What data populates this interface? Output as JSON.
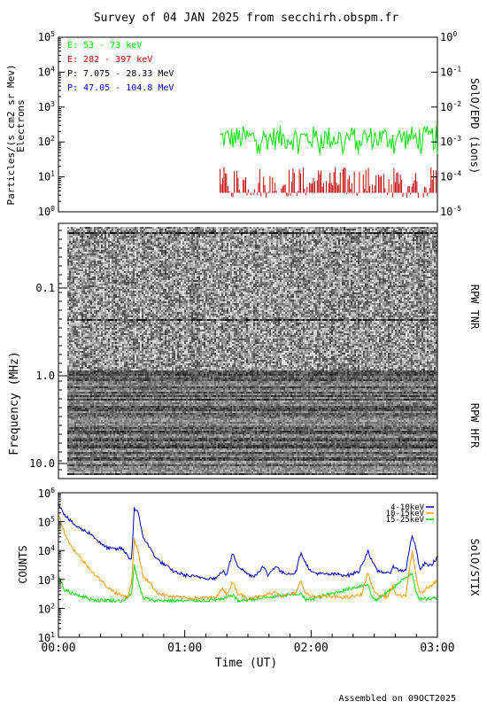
{
  "title": "Survey of 04 JAN 2025 from secchirh.obspm.fr",
  "footer": "Assembled on 09OCT2025",
  "colors": {
    "green": "#00e000",
    "red": "#c00000",
    "black": "#000000",
    "blue": "#0000c8",
    "orange": "#ff9900",
    "stix_green": "#00d800"
  },
  "chart_data": [
    {
      "type": "line",
      "name": "SolO/EPD",
      "ylabel_left": "Particles/(s cm2 sr Mev)",
      "ylabel_left2": "Electrons",
      "ylabel_right": "SolO/EPD (ions)",
      "yscale": "log",
      "ylim": [
        1,
        100000
      ],
      "ylim_right": [
        1e-05,
        1
      ],
      "xlim": [
        "00:00",
        "03:00"
      ],
      "left_ticks": [
        {
          "base": "10",
          "exp": "5"
        },
        {
          "base": "10",
          "exp": "4"
        },
        {
          "base": "10",
          "exp": "3"
        },
        {
          "base": "10",
          "exp": "2"
        },
        {
          "base": "10",
          "exp": "1"
        },
        {
          "base": "10",
          "exp": "0"
        }
      ],
      "right_ticks": [
        {
          "base": "10",
          "exp": "0"
        },
        {
          "base": "10",
          "exp": "-1"
        },
        {
          "base": "10",
          "exp": "-2"
        },
        {
          "base": "10",
          "exp": "-3"
        },
        {
          "base": "10",
          "exp": "-4"
        },
        {
          "base": "10",
          "exp": "-5"
        }
      ],
      "legend": [
        "E: 53 - 73 keV",
        "E: 282 - 397 keV",
        "P: 7.075 - 28.33 MeV",
        "P: 47.05 - 104.8 MeV"
      ],
      "series": [
        {
          "name": "E: 53 - 73 keV",
          "color": "#00e000",
          "x_start_hours": 1.28,
          "x_end_hours": 3.0,
          "level": 130,
          "spread": 0.35
        },
        {
          "name": "E: 282 - 397 keV",
          "color": "#c00000",
          "x_start_hours": 1.28,
          "x_end_hours": 3.0,
          "level": 7,
          "spread": 0.45
        }
      ]
    },
    {
      "type": "heatmap",
      "name": "RPW spectrogram",
      "ylabel": "Frequency (MHz)",
      "yscale": "log",
      "yticks": [
        "0.1",
        "1.0",
        "10.0"
      ],
      "panel_labels": [
        "RPW TNR",
        "RPW HFR"
      ],
      "xlim": [
        "00:00",
        "03:00"
      ]
    },
    {
      "type": "line",
      "name": "SolO/STIX",
      "ylabel": "COUNTS",
      "ylabel_right": "SolO/STIX",
      "yscale": "log",
      "ylim": [
        10,
        1000000
      ],
      "xlabel": "Time (UT)",
      "xticks": [
        "00:00",
        "01:00",
        "02:00",
        "03:00"
      ],
      "yticks": [
        {
          "base": "10",
          "exp": "6"
        },
        {
          "base": "10",
          "exp": "5"
        },
        {
          "base": "10",
          "exp": "4"
        },
        {
          "base": "10",
          "exp": "3"
        },
        {
          "base": "10",
          "exp": "2"
        },
        {
          "base": "10",
          "exp": "1"
        }
      ],
      "legend": [
        "4-10keV",
        "10-15keV",
        "15-25keV"
      ],
      "series": [
        {
          "name": "4-10keV",
          "color": "#0000c8",
          "base": 1100,
          "points": [
            [
              0.0,
              450000
            ],
            [
              0.05,
              170000
            ],
            [
              0.1,
              100000
            ],
            [
              0.15,
              65000
            ],
            [
              0.2,
              50000
            ],
            [
              0.25,
              40000
            ],
            [
              0.3,
              25000
            ],
            [
              0.35,
              15000
            ],
            [
              0.4,
              12000
            ],
            [
              0.45,
              11000
            ],
            [
              0.5,
              12000
            ],
            [
              0.55,
              6500
            ],
            [
              0.57,
              5000
            ],
            [
              0.58,
              5500
            ],
            [
              0.6,
              300000
            ],
            [
              0.63,
              200000
            ],
            [
              0.67,
              30000
            ],
            [
              0.72,
              13000
            ],
            [
              0.78,
              5000
            ],
            [
              0.85,
              3000
            ],
            [
              0.9,
              2000
            ],
            [
              1.0,
              1400
            ],
            [
              1.1,
              1200
            ],
            [
              1.2,
              1100
            ],
            [
              1.25,
              1100
            ],
            [
              1.3,
              2000
            ],
            [
              1.33,
              1400
            ],
            [
              1.38,
              8500
            ],
            [
              1.42,
              3000
            ],
            [
              1.5,
              1500
            ],
            [
              1.55,
              1300
            ],
            [
              1.62,
              2800
            ],
            [
              1.66,
              1400
            ],
            [
              1.72,
              3000
            ],
            [
              1.77,
              1700
            ],
            [
              1.85,
              1600
            ],
            [
              1.88,
              1800
            ],
            [
              1.92,
              9000
            ],
            [
              1.96,
              3500
            ],
            [
              2.0,
              1800
            ],
            [
              2.1,
              1500
            ],
            [
              2.2,
              1500
            ],
            [
              2.3,
              1400
            ],
            [
              2.38,
              1900
            ],
            [
              2.45,
              10000
            ],
            [
              2.48,
              4500
            ],
            [
              2.52,
              2000
            ],
            [
              2.58,
              1800
            ],
            [
              2.62,
              1500
            ],
            [
              2.65,
              3000
            ],
            [
              2.68,
              2200
            ],
            [
              2.72,
              2000
            ],
            [
              2.75,
              2200
            ],
            [
              2.8,
              35000
            ],
            [
              2.83,
              12000
            ],
            [
              2.86,
              2200
            ],
            [
              2.9,
              3500
            ],
            [
              2.95,
              3000
            ],
            [
              3.0,
              6000
            ]
          ]
        },
        {
          "name": "10-15keV",
          "color": "#ff9900",
          "base": 300,
          "points": [
            [
              0.0,
              180000
            ],
            [
              0.05,
              40000
            ],
            [
              0.1,
              14000
            ],
            [
              0.15,
              7500
            ],
            [
              0.2,
              4000
            ],
            [
              0.25,
              2300
            ],
            [
              0.3,
              1300
            ],
            [
              0.35,
              800
            ],
            [
              0.4,
              500
            ],
            [
              0.45,
              350
            ],
            [
              0.5,
              280
            ],
            [
              0.55,
              250
            ],
            [
              0.58,
              800
            ],
            [
              0.6,
              25000
            ],
            [
              0.63,
              9000
            ],
            [
              0.67,
              1300
            ],
            [
              0.72,
              800
            ],
            [
              0.78,
              350
            ],
            [
              0.85,
              280
            ],
            [
              0.9,
              250
            ],
            [
              1.0,
              230
            ],
            [
              1.25,
              230
            ],
            [
              1.3,
              550
            ],
            [
              1.33,
              280
            ],
            [
              1.38,
              850
            ],
            [
              1.42,
              320
            ],
            [
              1.5,
              230
            ],
            [
              1.6,
              250
            ],
            [
              1.72,
              380
            ],
            [
              1.77,
              260
            ],
            [
              1.88,
              330
            ],
            [
              1.92,
              900
            ],
            [
              1.96,
              330
            ],
            [
              2.0,
              260
            ],
            [
              2.3,
              240
            ],
            [
              2.4,
              300
            ],
            [
              2.45,
              1800
            ],
            [
              2.48,
              600
            ],
            [
              2.52,
              300
            ],
            [
              2.6,
              250
            ],
            [
              2.65,
              550
            ],
            [
              2.68,
              260
            ],
            [
              2.75,
              280
            ],
            [
              2.8,
              9500
            ],
            [
              2.83,
              1500
            ],
            [
              2.86,
              300
            ],
            [
              2.92,
              500
            ],
            [
              2.96,
              700
            ],
            [
              3.0,
              900
            ]
          ]
        },
        {
          "name": "15-25keV",
          "color": "#00d800",
          "base": 180,
          "points": [
            [
              0.0,
              1400
            ],
            [
              0.05,
              420
            ],
            [
              0.1,
              350
            ],
            [
              0.15,
              300
            ],
            [
              0.2,
              250
            ],
            [
              0.3,
              190
            ],
            [
              0.4,
              190
            ],
            [
              0.5,
              180
            ],
            [
              0.58,
              300
            ],
            [
              0.6,
              3500
            ],
            [
              0.63,
              800
            ],
            [
              0.67,
              230
            ],
            [
              0.75,
              190
            ],
            [
              1.0,
              180
            ],
            [
              1.3,
              200
            ],
            [
              1.38,
              300
            ],
            [
              1.42,
              180
            ],
            [
              1.92,
              320
            ],
            [
              1.96,
              190
            ],
            [
              2.45,
              700
            ],
            [
              2.48,
              250
            ],
            [
              2.52,
              190
            ],
            [
              2.8,
              1700
            ],
            [
              2.83,
              400
            ],
            [
              2.86,
              200
            ],
            [
              3.0,
              230
            ]
          ]
        }
      ]
    }
  ]
}
